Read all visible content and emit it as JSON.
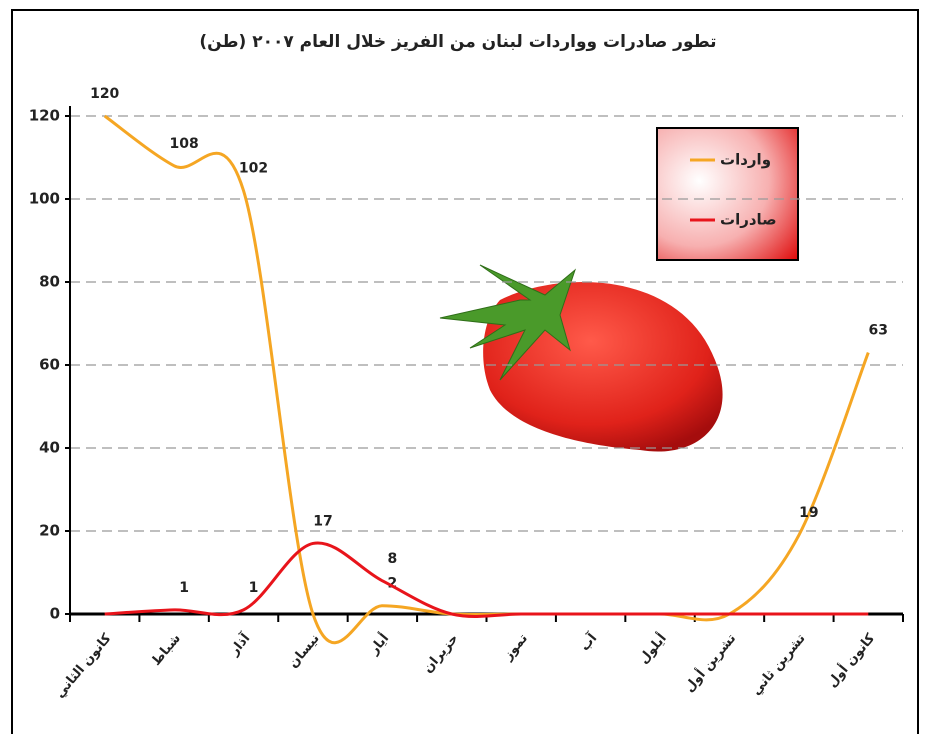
{
  "chart_data": {
    "type": "line",
    "title": "تطور صادرات وواردات لبنان من الفريز خلال العام ٢٠٠٧ (طن)",
    "categories": [
      "كانون الثاني",
      "شباط",
      "آذار",
      "نيسان",
      "أيار",
      "حزيران",
      "تموز",
      "آب",
      "أيلول",
      "تشرين أول",
      "تشرين ثاني",
      "كانون أول"
    ],
    "series": [
      {
        "name": "واردات",
        "color": "#f5a623",
        "values": [
          120,
          108,
          102,
          0,
          2,
          0,
          0,
          0,
          0,
          0,
          19,
          63
        ],
        "value_labels": [
          "120",
          "108",
          "102",
          null,
          "2",
          null,
          null,
          null,
          null,
          null,
          "19",
          "63"
        ]
      },
      {
        "name": "صادرات",
        "color": "#e8141b",
        "values": [
          0,
          1,
          1,
          17,
          8,
          0,
          0,
          0,
          0,
          0,
          0,
          0
        ],
        "value_labels": [
          null,
          "1",
          "1",
          "17",
          "8",
          null,
          null,
          null,
          null,
          null,
          null,
          null
        ]
      }
    ],
    "ylim": [
      0,
      120
    ],
    "yticks": [
      0,
      20,
      40,
      60,
      80,
      100,
      120
    ],
    "grid": true
  }
}
